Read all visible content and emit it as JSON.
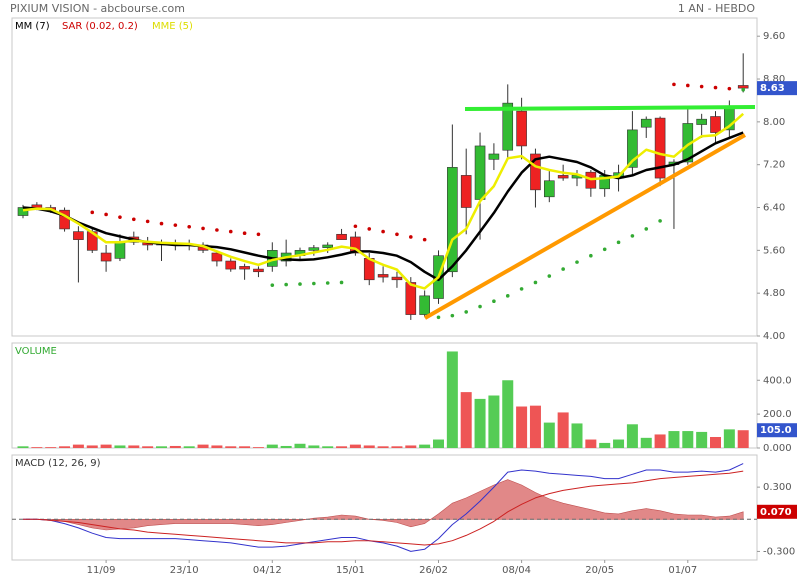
{
  "chart_data": [
    {
      "type": "candlestick",
      "title": "PIXIUM VISION - abcbourse.com",
      "subtitle": "1 AN - HEBDO",
      "up_color": "#33bb33",
      "down_color": "#ee2222",
      "open": [
        6.25,
        6.45,
        6.4,
        6.35,
        5.95,
        5.95,
        5.55,
        5.45,
        5.85,
        5.75,
        5.7,
        5.72,
        5.7,
        5.7,
        5.55,
        5.4,
        5.3,
        5.25,
        5.3,
        5.4,
        5.5,
        5.6,
        5.65,
        5.9,
        5.85,
        5.45,
        5.15,
        5.1,
        5.0,
        4.4,
        4.7,
        5.2,
        7.0,
        6.55,
        7.3,
        7.47,
        8.2,
        7.4,
        6.6,
        7.0,
        6.95,
        7.06,
        6.75,
        6.95,
        7.15,
        7.9,
        8.07,
        7.2,
        7.25,
        7.95,
        8.1,
        7.85,
        8.68
      ],
      "high": [
        6.45,
        6.5,
        6.45,
        6.4,
        6.05,
        6.0,
        5.7,
        5.9,
        5.95,
        5.85,
        5.8,
        5.8,
        5.8,
        5.75,
        5.6,
        5.45,
        5.35,
        5.3,
        5.75,
        5.8,
        5.65,
        5.7,
        5.75,
        6.0,
        5.95,
        5.55,
        5.3,
        5.2,
        5.1,
        4.85,
        5.6,
        7.95,
        7.5,
        7.8,
        7.6,
        8.7,
        8.45,
        7.5,
        7.1,
        7.2,
        7.1,
        7.1,
        7.1,
        7.2,
        8.2,
        8.1,
        8.1,
        7.3,
        8.3,
        8.15,
        8.2,
        8.4,
        9.28
      ],
      "low": [
        6.2,
        6.35,
        6.3,
        5.95,
        5.0,
        5.55,
        5.2,
        5.4,
        5.7,
        5.6,
        5.4,
        5.6,
        5.6,
        5.55,
        5.3,
        5.2,
        5.05,
        5.1,
        5.2,
        5.3,
        5.4,
        5.5,
        5.55,
        5.8,
        5.5,
        4.95,
        5.0,
        4.9,
        4.3,
        4.35,
        4.6,
        5.1,
        5.9,
        5.8,
        7.1,
        7.3,
        7.3,
        6.4,
        6.5,
        6.9,
        6.8,
        6.6,
        6.6,
        6.7,
        7.0,
        7.7,
        6.8,
        6.0,
        7.2,
        7.7,
        7.6,
        7.7,
        8.55
      ],
      "close": [
        6.4,
        6.38,
        6.35,
        6.0,
        5.8,
        5.6,
        5.4,
        5.75,
        5.75,
        5.7,
        5.72,
        5.7,
        5.72,
        5.6,
        5.4,
        5.25,
        5.25,
        5.2,
        5.6,
        5.55,
        5.6,
        5.65,
        5.7,
        5.8,
        5.55,
        5.05,
        5.1,
        5.05,
        4.4,
        4.75,
        5.5,
        7.15,
        6.4,
        7.55,
        7.4,
        8.35,
        7.55,
        6.73,
        6.9,
        6.95,
        7.0,
        6.76,
        7.0,
        7.05,
        7.85,
        8.05,
        6.95,
        7.25,
        7.97,
        8.05,
        7.8,
        8.25,
        8.63
      ],
      "series": [
        {
          "name": "MM (7)",
          "color": "#000000",
          "values": [
            6.4,
            6.38,
            6.33,
            6.25,
            6.12,
            6.02,
            5.92,
            5.86,
            5.8,
            5.75,
            5.72,
            5.7,
            5.7,
            5.68,
            5.66,
            5.62,
            5.56,
            5.5,
            5.45,
            5.43,
            5.42,
            5.43,
            5.47,
            5.52,
            5.58,
            5.58,
            5.55,
            5.5,
            5.38,
            5.2,
            5.05,
            5.3,
            5.6,
            5.95,
            6.3,
            6.7,
            7.05,
            7.3,
            7.35,
            7.3,
            7.25,
            7.15,
            7.0,
            6.95,
            7.0,
            7.1,
            7.15,
            7.2,
            7.3,
            7.45,
            7.6,
            7.7,
            7.8
          ]
        },
        {
          "name": "MME (5)",
          "color": "#eeee00",
          "values": [
            6.35,
            6.38,
            6.37,
            6.25,
            6.1,
            5.93,
            5.75,
            5.75,
            5.78,
            5.76,
            5.74,
            5.73,
            5.72,
            5.68,
            5.58,
            5.48,
            5.4,
            5.33,
            5.42,
            5.47,
            5.51,
            5.56,
            5.61,
            5.67,
            5.63,
            5.44,
            5.33,
            5.24,
            4.96,
            4.89,
            5.1,
            5.8,
            6.0,
            6.52,
            6.8,
            7.32,
            7.36,
            7.17,
            7.1,
            7.05,
            7.02,
            6.93,
            6.95,
            6.98,
            7.27,
            7.48,
            7.4,
            7.35,
            7.57,
            7.73,
            7.75,
            7.92,
            8.15
          ]
        }
      ],
      "sar": {
        "name": "SAR (0.02, 0.2)",
        "color": "#cc0000",
        "color_below": "#33aa33",
        "values": [
          null,
          null,
          null,
          null,
          null,
          6.31,
          6.27,
          6.22,
          6.18,
          6.14,
          6.1,
          6.07,
          6.04,
          6.01,
          5.98,
          5.95,
          5.92,
          5.9,
          4.95,
          4.96,
          4.97,
          4.98,
          4.99,
          5.0,
          6.05,
          6.0,
          5.95,
          5.9,
          5.85,
          5.8,
          4.35,
          4.38,
          4.45,
          4.55,
          4.65,
          4.75,
          4.88,
          5.0,
          5.12,
          5.25,
          5.38,
          5.5,
          5.62,
          5.75,
          5.87,
          6.0,
          6.15,
          8.7,
          8.68,
          8.66,
          8.64,
          8.62,
          8.6
        ]
      },
      "ylim": [
        4.0,
        9.94
      ],
      "yticks": [
        {
          "value": 4,
          "label": "4.00"
        },
        {
          "value": 4.8,
          "label": "4.80"
        },
        {
          "value": 5.6,
          "label": "5.60"
        },
        {
          "value": 6.4,
          "label": "6.40"
        },
        {
          "value": 7.2,
          "label": "7.20"
        },
        {
          "value": 8,
          "label": "8.00"
        },
        {
          "value": 8.8,
          "label": "8.80"
        },
        {
          "value": 9.6,
          "label": "9.60"
        }
      ],
      "last": 8.63,
      "flag_color": "#3355cc"
    },
    {
      "type": "bar",
      "title": "VOLUME",
      "title_color": "#33aa33",
      "values": [
        10,
        5,
        5,
        10,
        20,
        15,
        20,
        15,
        15,
        10,
        10,
        12,
        10,
        20,
        15,
        10,
        10,
        5,
        20,
        12,
        25,
        15,
        10,
        10,
        20,
        15,
        10,
        10,
        15,
        20,
        50,
        570,
        330,
        290,
        310,
        400,
        245,
        250,
        150,
        210,
        145,
        50,
        30,
        50,
        140,
        60,
        80,
        100,
        100,
        95,
        65,
        110,
        105
      ],
      "ylim": [
        0,
        620
      ],
      "yticks": [
        {
          "value": 0,
          "label": "0.000"
        },
        {
          "value": 200,
          "label": "200.0"
        },
        {
          "value": 400,
          "label": "400.0"
        }
      ],
      "last": {
        "value": 105,
        "label": "105.0"
      },
      "flag_color": "#3355cc"
    },
    {
      "type": "macd",
      "title": "MACD (12, 26, 9)",
      "categories": [
        null,
        null,
        null,
        null,
        null,
        null,
        "11/09",
        null,
        null,
        null,
        null,
        null,
        "23/10",
        null,
        null,
        null,
        null,
        null,
        "04/12",
        null,
        null,
        null,
        null,
        null,
        "15/01",
        null,
        null,
        null,
        null,
        null,
        "26/02",
        null,
        null,
        null,
        null,
        null,
        "08/04",
        null,
        null,
        null,
        null,
        null,
        "20/05",
        null,
        null,
        null,
        null,
        null,
        "01/07",
        null,
        null,
        null,
        null
      ],
      "series": [
        {
          "color": "#3333cc",
          "values": [
            0.0,
            0.0,
            -0.01,
            -0.04,
            -0.08,
            -0.13,
            -0.17,
            -0.18,
            -0.18,
            -0.18,
            -0.18,
            -0.18,
            -0.19,
            -0.2,
            -0.21,
            -0.22,
            -0.24,
            -0.26,
            -0.26,
            -0.25,
            -0.23,
            -0.21,
            -0.19,
            -0.17,
            -0.17,
            -0.2,
            -0.22,
            -0.25,
            -0.3,
            -0.28,
            -0.18,
            -0.05,
            0.05,
            0.17,
            0.3,
            0.44,
            0.46,
            0.45,
            0.43,
            0.42,
            0.41,
            0.4,
            0.38,
            0.38,
            0.42,
            0.46,
            0.46,
            0.44,
            0.44,
            0.45,
            0.44,
            0.46,
            0.52
          ]
        },
        {
          "color": "#cc2222",
          "values": [
            0,
            0,
            -0.01,
            -0.02,
            -0.03,
            -0.05,
            -0.07,
            -0.09,
            -0.1,
            -0.12,
            -0.13,
            -0.14,
            -0.15,
            -0.16,
            -0.17,
            -0.18,
            -0.19,
            -0.2,
            -0.21,
            -0.22,
            -0.22,
            -0.22,
            -0.21,
            -0.21,
            -0.2,
            -0.2,
            -0.21,
            -0.22,
            -0.23,
            -0.24,
            -0.23,
            -0.2,
            -0.15,
            -0.09,
            -0.02,
            0.07,
            0.14,
            0.2,
            0.24,
            0.27,
            0.29,
            0.31,
            0.32,
            0.33,
            0.34,
            0.36,
            0.38,
            0.39,
            0.4,
            0.41,
            0.42,
            0.43,
            0.45
          ]
        }
      ],
      "histogram": {
        "color": "#d96a6a",
        "values": [
          0,
          0,
          0,
          -0.02,
          -0.05,
          -0.08,
          -0.1,
          -0.09,
          -0.08,
          -0.06,
          -0.05,
          -0.04,
          -0.04,
          -0.04,
          -0.04,
          -0.04,
          -0.05,
          -0.06,
          -0.05,
          -0.03,
          -0.01,
          0.01,
          0.02,
          0.04,
          0.03,
          0.0,
          -0.01,
          -0.03,
          -0.07,
          -0.04,
          0.05,
          0.15,
          0.2,
          0.26,
          0.32,
          0.37,
          0.32,
          0.25,
          0.19,
          0.15,
          0.12,
          0.09,
          0.06,
          0.05,
          0.08,
          0.1,
          0.08,
          0.05,
          0.04,
          0.04,
          0.02,
          0.03,
          0.07
        ]
      },
      "ylim": [
        -0.38,
        0.6
      ],
      "yticks": [
        {
          "value": 0.3,
          "label": "0.300"
        },
        {
          "value": -0.3,
          "label": "-0.300"
        }
      ],
      "last": {
        "value": 0.07,
        "label": "0.070"
      },
      "flag_color": "#cc0000"
    }
  ]
}
